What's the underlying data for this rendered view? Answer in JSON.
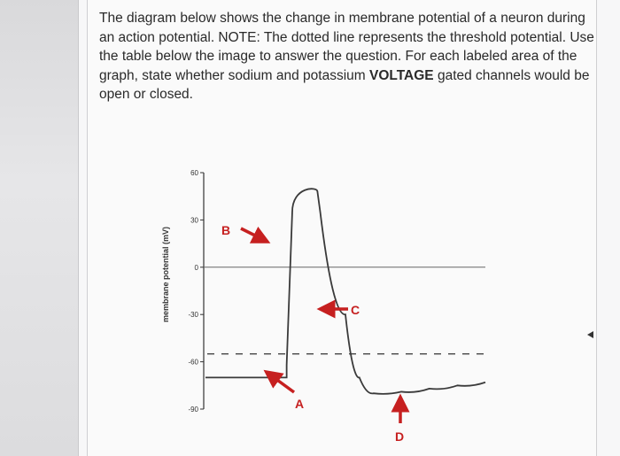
{
  "question": {
    "part1": "The diagram below shows the change in membrane potential of a neuron during an action potential.  NOTE: The dotted line represents the threshold potential.  Use the table below the image to answer the question.  For each labeled area of the graph, state whether sodium and potassium ",
    "bold": "VOLTAGE",
    "part2": " gated channels would be open or closed."
  },
  "chart_data": {
    "type": "line",
    "ylabel": "membrane potential (mV)",
    "yticks": [
      60,
      30,
      0,
      -30,
      -60,
      -90
    ],
    "ylim": [
      -95,
      65
    ],
    "series": [
      {
        "x": [
          0,
          1.45,
          1.45,
          1.55,
          2.0,
          2.05,
          2.5,
          2.75,
          3.0,
          3.5,
          4.0,
          4.5,
          5.0
        ],
        "values": [
          -70,
          -70,
          -62,
          35,
          48,
          35,
          -30,
          -70,
          -80,
          -79,
          -77,
          -75,
          -73
        ]
      }
    ],
    "reference_lines": {
      "zero": 0,
      "threshold": -55
    },
    "markers": [
      {
        "label": "A",
        "direction": "up-left"
      },
      {
        "label": "B",
        "direction": "down-right"
      },
      {
        "label": "C",
        "direction": "left"
      },
      {
        "label": "D",
        "direction": "up"
      }
    ],
    "colors": {
      "trace": "#3a3a3a",
      "marker": "#c62020",
      "axis": "#333333"
    }
  }
}
